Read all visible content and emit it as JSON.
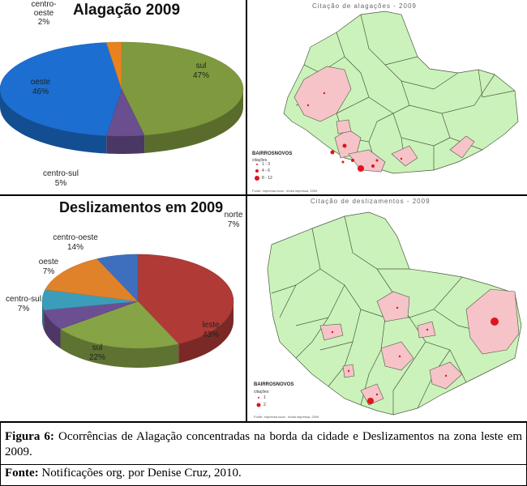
{
  "chart_data": [
    {
      "type": "pie",
      "title": "Alagação 2009",
      "categories": [
        "sul",
        "centro-sul",
        "oeste",
        "centro-oeste"
      ],
      "values": [
        47,
        5,
        46,
        2
      ],
      "labels": [
        "47%",
        "5%",
        "46%",
        "2%"
      ],
      "colors": [
        "#7f9a3e",
        "#6a4e8e",
        "#1c6fd1",
        "#e8821f"
      ]
    },
    {
      "type": "pie",
      "title": "Deslizamentos em 2009",
      "categories": [
        "leste",
        "sul",
        "centro-sul",
        "oeste",
        "centro-oeste",
        "norte"
      ],
      "values": [
        43,
        22,
        7,
        7,
        14,
        7
      ],
      "labels": [
        "43%",
        "22%",
        "7%",
        "7%",
        "14%",
        "7%"
      ],
      "colors": [
        "#b03a36",
        "#86a346",
        "#6c4f92",
        "#3c9dbb",
        "#e0822a",
        "#3d6fbe"
      ]
    }
  ],
  "maps": [
    {
      "title": "Citação de alagações - 2009",
      "legend_title": "BAIRROSNOVOS",
      "legend_sub": "citações",
      "legend_items": [
        "1 - 3",
        "4 - 6",
        "8 - 12"
      ],
      "source": "Fonte: Imprensa local - mídia impressa, 2009"
    },
    {
      "title": "Citação de deslizamentos - 2009",
      "legend_title": "BAIRROSNOVOS",
      "legend_sub": "citações",
      "legend_items": [
        "1",
        "2"
      ],
      "source": "Fonte: Imprensa local - mídia impressa, 2009"
    }
  ],
  "caption": {
    "figure_label": "Figura 6:",
    "figure_text": " Ocorrências de Alagação concentradas na borda da cidade e Deslizamentos na zona leste em 2009.",
    "source_label": "Fonte:",
    "source_text": " Notificações org. por Denise Cruz, 2010."
  },
  "colors": {
    "map_land": "#ccf2bb",
    "map_highlight": "#f5c3c8",
    "map_border": "#4a5a40",
    "marker": "#e0141e"
  }
}
